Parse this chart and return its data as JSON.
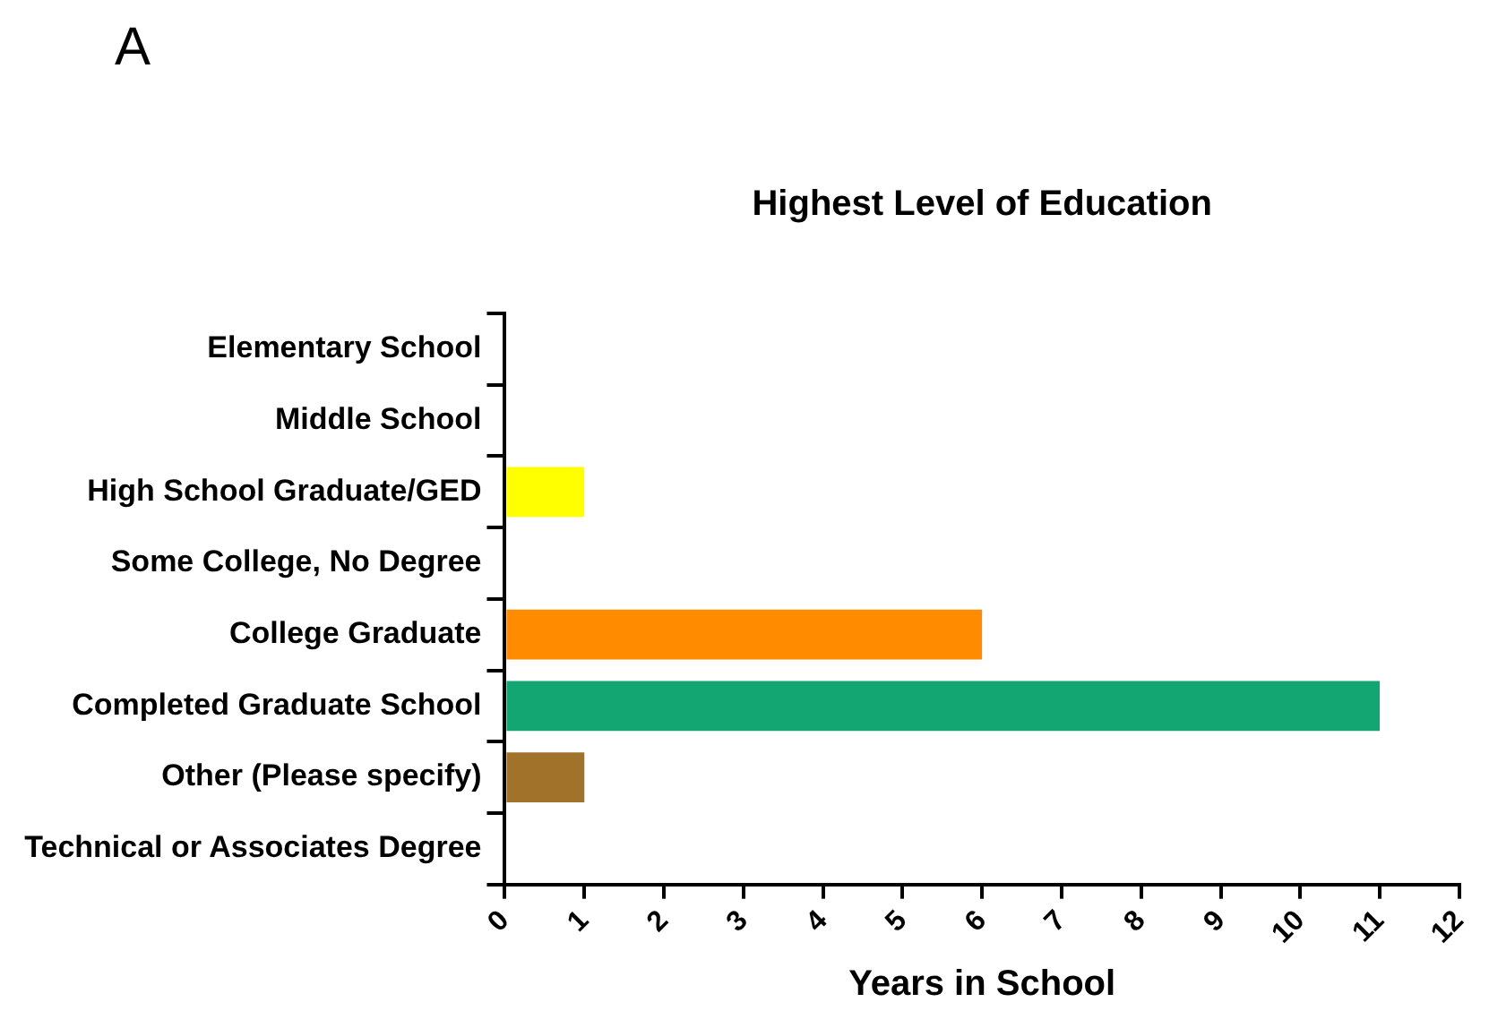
{
  "chart_data": {
    "type": "bar",
    "orientation": "horizontal",
    "title": "Highest Level of Education",
    "xlabel": "Years in School",
    "annotations": [
      "A"
    ],
    "categories": [
      "Elementary School",
      "Middle School",
      "High School Graduate/GED",
      "Some College, No Degree",
      "College Graduate",
      "Completed Graduate School",
      "Other (Please specify)",
      "Technical or Associates Degree"
    ],
    "values": [
      0,
      0,
      1,
      0,
      6,
      11,
      1,
      0
    ],
    "colors": [
      "#ffff00",
      "#ffff00",
      "#ffff00",
      "#ff8c00",
      "#ff8c00",
      "#13a673",
      "#a0722a",
      "#a0722a"
    ],
    "xlim": [
      0,
      12
    ],
    "xticks": [
      0,
      1,
      2,
      3,
      4,
      5,
      6,
      7,
      8,
      9,
      10,
      11,
      12
    ],
    "grid": false,
    "legend": false
  }
}
